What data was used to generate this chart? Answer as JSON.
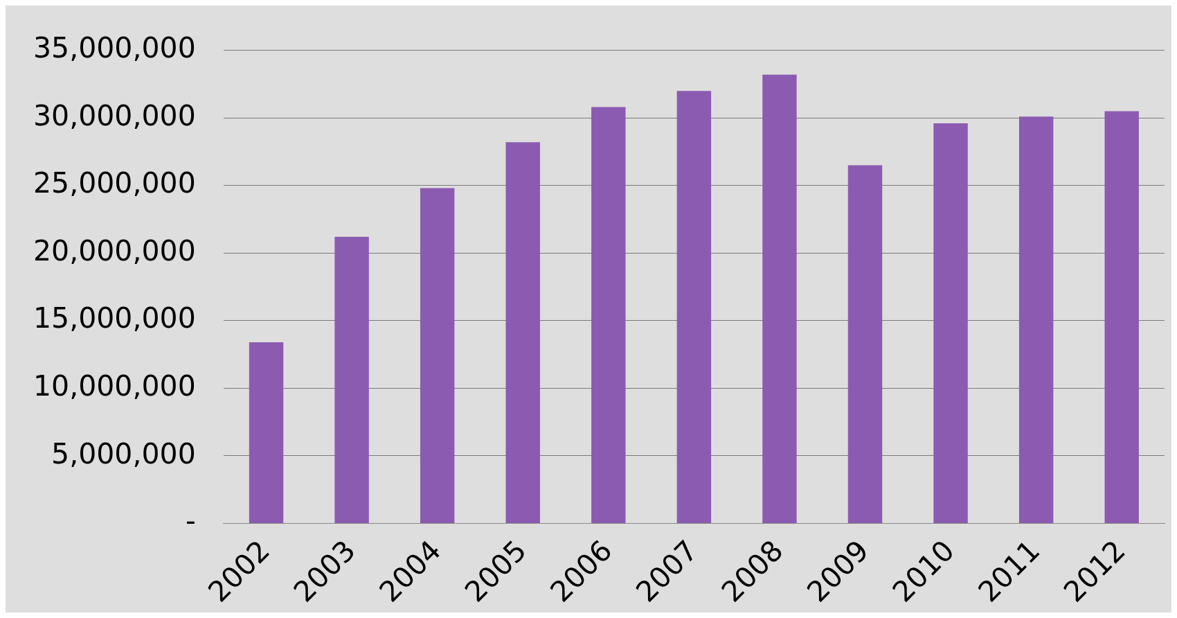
{
  "chart_data": {
    "type": "bar",
    "categories": [
      "2002",
      "2003",
      "2004",
      "2005",
      "2006",
      "2007",
      "2008",
      "2009",
      "2010",
      "2011",
      "2012"
    ],
    "values": [
      13400000,
      21200000,
      24800000,
      28200000,
      30800000,
      32000000,
      33200000,
      26500000,
      29600000,
      30100000,
      30500000
    ],
    "color": "#8b5bb1",
    "ylim": [
      0,
      35000000
    ],
    "yticks": [
      {
        "value": 0,
        "label": "-"
      },
      {
        "value": 5000000,
        "label": "5,000,000"
      },
      {
        "value": 10000000,
        "label": "10,000,000"
      },
      {
        "value": 15000000,
        "label": "15,000,000"
      },
      {
        "value": 20000000,
        "label": "20,000,000"
      },
      {
        "value": 25000000,
        "label": "25,000,000"
      },
      {
        "value": 30000000,
        "label": "30,000,000"
      },
      {
        "value": 35000000,
        "label": "35,000,000"
      }
    ],
    "grid": "y",
    "legend": false
  }
}
